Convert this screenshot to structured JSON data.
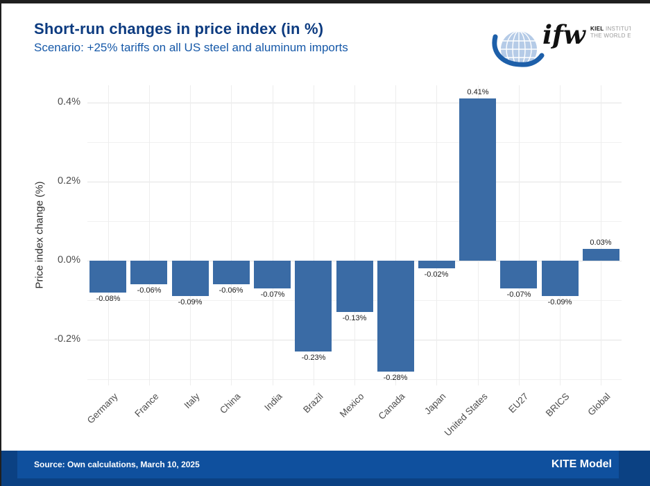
{
  "header": {
    "title": "Short-run changes in price index (in %)",
    "subtitle": "Scenario: +25% tariffs on all US steel and aluminum imports",
    "logo": {
      "wordmark": "ifw",
      "name_bold": "KIEL",
      "name_line1_rest": " INSTITUTE FOR",
      "name_line2": "THE WORLD ECONOMY"
    }
  },
  "chart_data": {
    "type": "bar",
    "title": "Short-run changes in price index (in %)",
    "subtitle": "Scenario: +25% tariffs on all US steel and aluminum imports",
    "categories": [
      "Germany",
      "France",
      "Italy",
      "China",
      "India",
      "Brazil",
      "Mexico",
      "Canada",
      "Japan",
      "United States",
      "EU27",
      "BRICS",
      "Global"
    ],
    "values": [
      -0.08,
      -0.06,
      -0.09,
      -0.06,
      -0.07,
      -0.23,
      -0.13,
      -0.28,
      -0.02,
      0.41,
      -0.07,
      -0.09,
      0.03
    ],
    "bar_labels": [
      "-0.08%",
      "-0.06%",
      "-0.09%",
      "-0.06%",
      "-0.07%",
      "-0.23%",
      "-0.13%",
      "-0.28%",
      "-0.02%",
      "0.41%",
      "-0.07%",
      "-0.09%",
      "0.03%"
    ],
    "xlabel": "",
    "ylabel": "Price index change (%)",
    "ylim": [
      -0.32,
      0.45
    ],
    "y_major_ticks": [
      {
        "value": 0.4,
        "label": "0.4%"
      },
      {
        "value": 0.2,
        "label": "0.2%"
      },
      {
        "value": 0.0,
        "label": "0.0%"
      },
      {
        "value": -0.2,
        "label": "-0.2%"
      }
    ],
    "y_minor_ticks": [
      0.3,
      0.1,
      -0.1,
      -0.3
    ],
    "grid": "horizontal major+minor and vertical category gridlines, light gray on white",
    "legend": "none",
    "bar_color": "#3a6ba5"
  },
  "footer": {
    "source": "Source: Own calculations, March 10, 2025",
    "model": "KITE Model"
  },
  "colors": {
    "title": "#0c3b80",
    "subtitle": "#1558a8",
    "bar": "#3a6ba5",
    "footer_outer": "#0b4183",
    "footer_inner": "#0f509e",
    "footer_text": "#ffffff",
    "axis_text": "#4d4d4d",
    "label_text": "#1a1a1a",
    "grid_major": "#e3e3e3",
    "grid_minor": "#f1f1f1",
    "logo_globe": "#b5cbe7",
    "logo_globe_grid": "#ffffff",
    "logo_swoosh": "#1d5fa9"
  }
}
